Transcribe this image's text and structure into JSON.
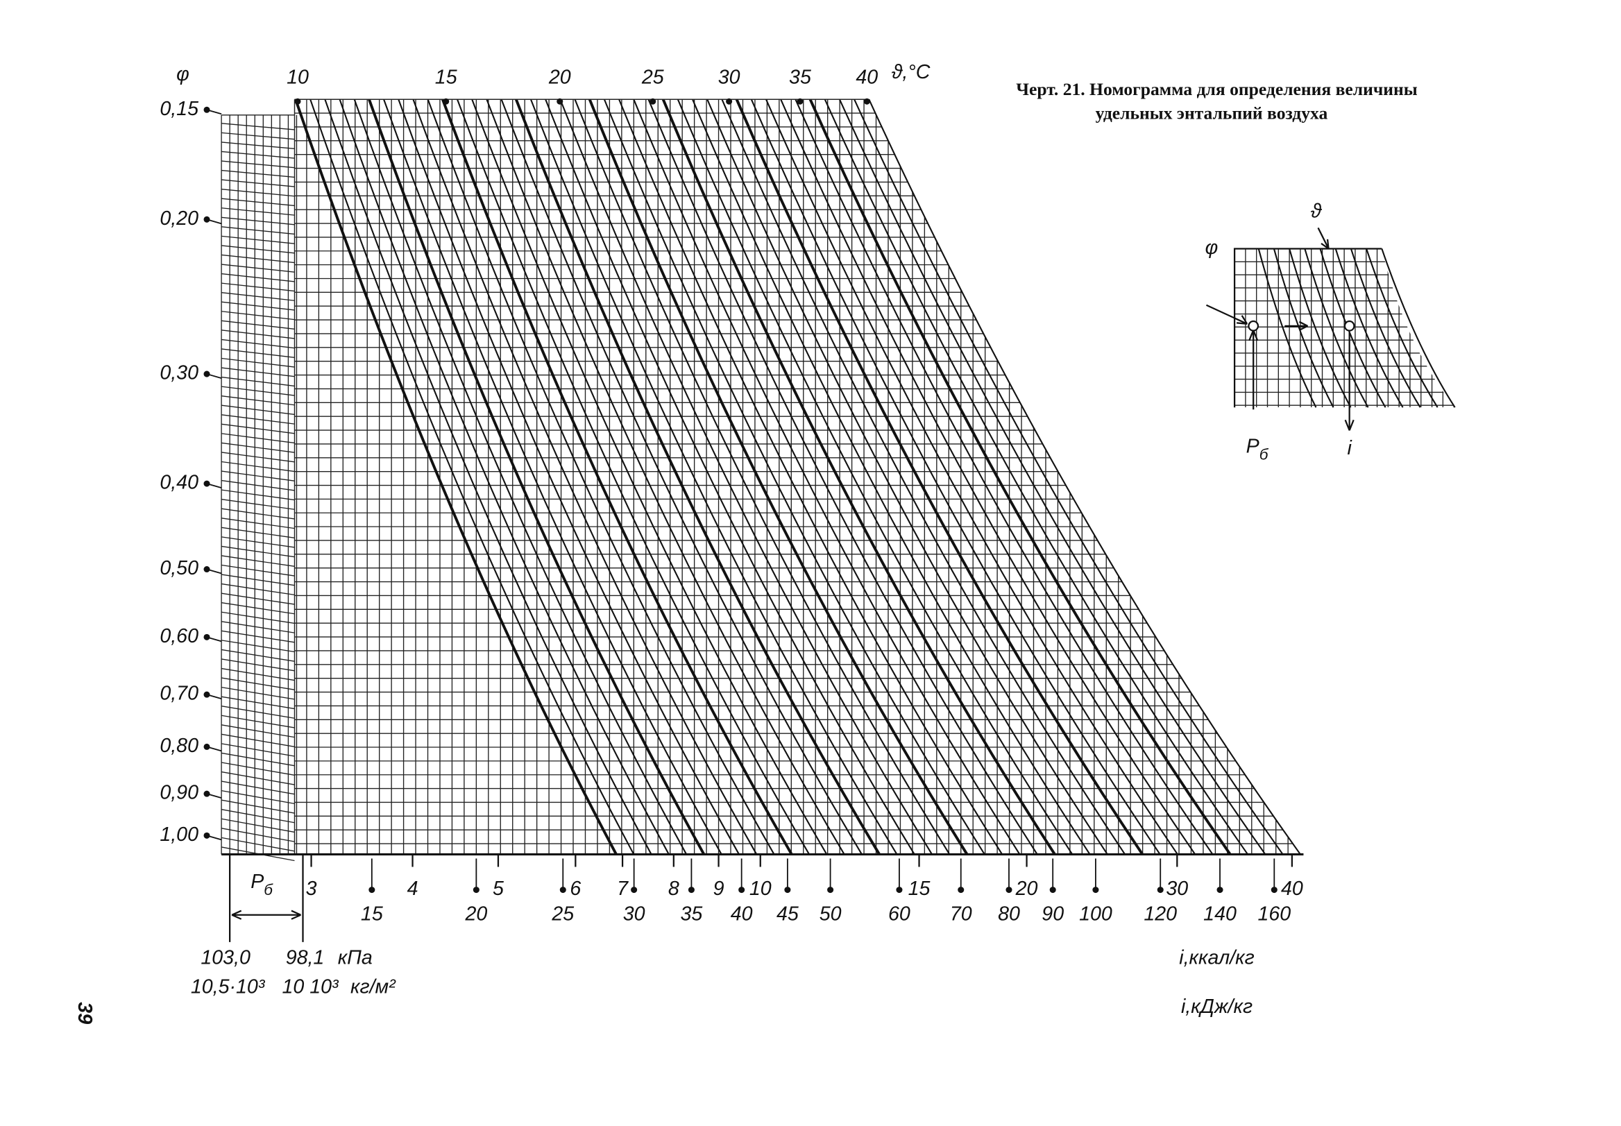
{
  "header": {
    "title_line1": "Черт. 21. Номограмма для определения величины",
    "title_line2": "удельных энтальпий воздуха"
  },
  "nomogram": {
    "phi_symbol": "φ",
    "phi_labels": [
      "0,15",
      "0,20",
      "0,30",
      "0,40",
      "0,50",
      "0,60",
      "0,70",
      "0,80",
      "0,90",
      "1,00"
    ],
    "theta_labels": [
      10,
      15,
      20,
      25,
      30,
      35,
      40
    ],
    "theta_unit": "ϑ,°C",
    "enthalpy_kcal_labels": [
      3,
      4,
      5,
      6,
      7,
      8,
      9,
      10,
      15,
      20,
      30,
      40
    ],
    "enthalpy_kcal_unit": "i,ккал/кг",
    "enthalpy_kj_labels": [
      15,
      20,
      25,
      30,
      35,
      40,
      45,
      50,
      60,
      70,
      80,
      90,
      100,
      120,
      140,
      160
    ],
    "enthalpy_kj_unit": "i,кДж/кг",
    "pressure_symbol": "P",
    "pressure_subscript": "б",
    "pressure_kpa": [
      "103,0",
      "98,1"
    ],
    "pressure_kpa_unit": "кПа",
    "pressure_kgm2": [
      "10,5·10³",
      "10 10³"
    ],
    "pressure_kgm2_unit": "кг/м²"
  },
  "inset": {
    "phi_symbol": "φ",
    "theta_symbol": "ϑ",
    "pressure_symbol": "P",
    "pressure_subscript": "б",
    "enthalpy_symbol": "i"
  },
  "page_number": "39"
}
